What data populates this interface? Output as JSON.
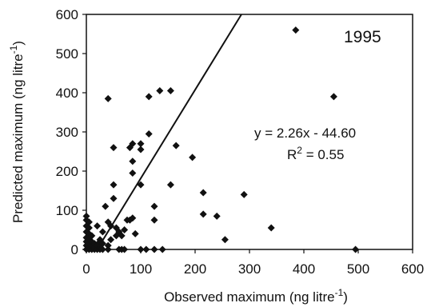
{
  "chart_data": {
    "type": "scatter",
    "title": "",
    "xlabel": "Observed maximum (ng litre",
    "xlabel_sup": "-1",
    "xlabel_close": ")",
    "ylabel": "Predicted maximum (ng litre",
    "ylabel_sup": "-1",
    "ylabel_close": ")",
    "xlim": [
      0,
      600
    ],
    "ylim": [
      0,
      600
    ],
    "xticks": [
      0,
      100,
      200,
      300,
      400,
      500,
      600
    ],
    "yticks": [
      0,
      100,
      200,
      300,
      400,
      500,
      600
    ],
    "grid": false,
    "year": "1995",
    "equation": "y = 2.26x - 44.60",
    "r2_text": "R",
    "r2_sup": "2",
    "r2_value": " = 0.55",
    "trendline": {
      "slope": 2.26,
      "intercept": -44.6
    },
    "marker_color": "#111111",
    "series": [
      {
        "points": [
          [
            0,
            0
          ],
          [
            0,
            10
          ],
          [
            0,
            20
          ],
          [
            0,
            30
          ],
          [
            0,
            45
          ],
          [
            0,
            60
          ],
          [
            0,
            75
          ],
          [
            0,
            85
          ],
          [
            5,
            0
          ],
          [
            5,
            15
          ],
          [
            5,
            25
          ],
          [
            5,
            40
          ],
          [
            5,
            55
          ],
          [
            5,
            70
          ],
          [
            10,
            0
          ],
          [
            10,
            10
          ],
          [
            10,
            20
          ],
          [
            10,
            35
          ],
          [
            15,
            0
          ],
          [
            15,
            5
          ],
          [
            15,
            15
          ],
          [
            20,
            0
          ],
          [
            20,
            10
          ],
          [
            20,
            60
          ],
          [
            25,
            0
          ],
          [
            25,
            5
          ],
          [
            25,
            20
          ],
          [
            25,
            25
          ],
          [
            30,
            0
          ],
          [
            30,
            15
          ],
          [
            30,
            45
          ],
          [
            35,
            110
          ],
          [
            40,
            0
          ],
          [
            40,
            10
          ],
          [
            40,
            70
          ],
          [
            40,
            385
          ],
          [
            45,
            25
          ],
          [
            45,
            60
          ],
          [
            50,
            130
          ],
          [
            50,
            165
          ],
          [
            50,
            260
          ],
          [
            55,
            35
          ],
          [
            55,
            55
          ],
          [
            60,
            0
          ],
          [
            60,
            45
          ],
          [
            65,
            0
          ],
          [
            65,
            35
          ],
          [
            70,
            0
          ],
          [
            70,
            50
          ],
          [
            75,
            75
          ],
          [
            80,
            75
          ],
          [
            80,
            260
          ],
          [
            85,
            80
          ],
          [
            85,
            270
          ],
          [
            85,
            195
          ],
          [
            85,
            225
          ],
          [
            90,
            40
          ],
          [
            100,
            0
          ],
          [
            100,
            165
          ],
          [
            100,
            255
          ],
          [
            100,
            270
          ],
          [
            110,
            0
          ],
          [
            115,
            295
          ],
          [
            115,
            390
          ],
          [
            125,
            0
          ],
          [
            125,
            75
          ],
          [
            125,
            110
          ],
          [
            135,
            405
          ],
          [
            140,
            0
          ],
          [
            155,
            405
          ],
          [
            155,
            165
          ],
          [
            165,
            265
          ],
          [
            195,
            235
          ],
          [
            215,
            90
          ],
          [
            215,
            145
          ],
          [
            240,
            85
          ],
          [
            255,
            25
          ],
          [
            290,
            140
          ],
          [
            340,
            55
          ],
          [
            385,
            560
          ],
          [
            455,
            390
          ],
          [
            495,
            0
          ]
        ]
      }
    ]
  }
}
